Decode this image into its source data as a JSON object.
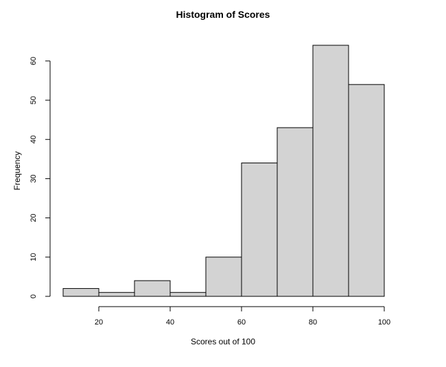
{
  "chart_data": {
    "type": "bar",
    "title": "Histogram of Scores",
    "xlabel": "Scores out of 100",
    "ylabel": "Frequency",
    "bins": [
      {
        "start": 10,
        "end": 20,
        "count": 2
      },
      {
        "start": 20,
        "end": 30,
        "count": 1
      },
      {
        "start": 30,
        "end": 40,
        "count": 4
      },
      {
        "start": 40,
        "end": 50,
        "count": 1
      },
      {
        "start": 50,
        "end": 60,
        "count": 10
      },
      {
        "start": 60,
        "end": 70,
        "count": 34
      },
      {
        "start": 70,
        "end": 80,
        "count": 43
      },
      {
        "start": 80,
        "end": 90,
        "count": 64
      },
      {
        "start": 90,
        "end": 100,
        "count": 54
      }
    ],
    "xlim": [
      10,
      100
    ],
    "ylim": [
      0,
      64
    ],
    "x_ticks": [
      20,
      40,
      60,
      80,
      100
    ],
    "y_ticks": [
      0,
      10,
      20,
      30,
      40,
      50,
      60
    ],
    "grid": false,
    "bar_fill": "#d3d3d3",
    "bar_stroke": "#000000"
  }
}
